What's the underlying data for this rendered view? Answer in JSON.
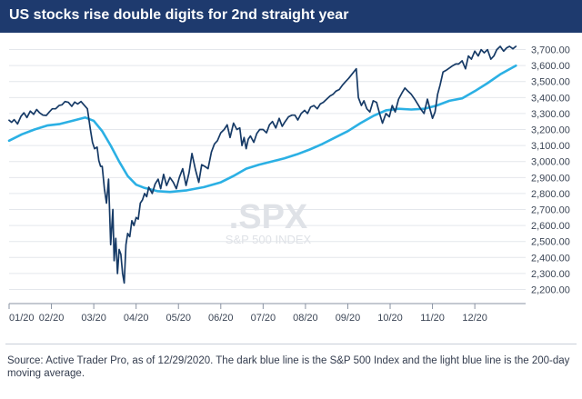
{
  "header": {
    "title": "US stocks rise double digits for 2nd straight year"
  },
  "watermark": {
    "symbol": ".SPX",
    "name": "S&P 500 INDEX"
  },
  "footer": {
    "source": "Source: Active Trader Pro, as of 12/29/2020. The dark blue line is the S&P 500 Index and the light blue line is the 200-day moving average."
  },
  "colors": {
    "title_bar": "#1e3a6e",
    "spx_line": "#163a66",
    "ma_line": "#2bb0e4",
    "grid": "#e4e7ec"
  },
  "chart_data": {
    "type": "line",
    "title": "US stocks rise double digits for 2nd straight year",
    "xlabel": "",
    "ylabel": "",
    "x_ticks": [
      "01/20",
      "02/20",
      "03/20",
      "04/20",
      "05/20",
      "06/20",
      "07/20",
      "08/20",
      "09/20",
      "10/20",
      "11/20",
      "12/20"
    ],
    "y_ticks": [
      "2,200.00",
      "2,300.00",
      "2,400.00",
      "2,500.00",
      "2,600.00",
      "2,700.00",
      "2,800.00",
      "2,900.00",
      "3,000.00",
      "3,100.00",
      "3,200.00",
      "3,300.00",
      "3,400.00",
      "3,500.00",
      "3,600.00",
      "3,700.00"
    ],
    "ylim": [
      2180,
      3760
    ],
    "xlim": [
      0,
      12.2
    ],
    "grid": "horizontal",
    "series": [
      {
        "x": [
          0.0,
          0.06,
          0.12,
          0.2,
          0.28,
          0.35,
          0.42,
          0.5,
          0.58,
          0.65,
          0.72,
          0.8,
          0.88,
          0.95,
          1.02,
          1.1,
          1.18,
          1.25,
          1.32,
          1.4,
          1.48,
          1.55,
          1.62,
          1.7,
          1.78,
          1.85,
          1.92,
          1.97,
          2.02,
          2.08,
          2.12,
          2.16,
          2.2,
          2.25,
          2.3,
          2.35,
          2.4,
          2.45,
          2.48,
          2.52,
          2.56,
          2.6,
          2.64,
          2.68,
          2.72,
          2.76,
          2.8,
          2.85,
          2.9,
          2.95,
          3.0,
          3.05,
          3.1,
          3.15,
          3.2,
          3.25,
          3.3,
          3.38,
          3.45,
          3.52,
          3.58,
          3.65,
          3.72,
          3.8,
          3.88,
          3.95,
          4.02,
          4.1,
          4.18,
          4.25,
          4.32,
          4.4,
          4.48,
          4.55,
          4.62,
          4.7,
          4.78,
          4.85,
          4.92,
          5.0,
          5.08,
          5.15,
          5.22,
          5.3,
          5.38,
          5.45,
          5.5,
          5.55,
          5.6,
          5.65,
          5.7,
          5.78,
          5.85,
          5.92,
          6.0,
          6.08,
          6.15,
          6.22,
          6.3,
          6.38,
          6.45,
          6.52,
          6.6,
          6.68,
          6.75,
          6.82,
          6.9,
          6.98,
          7.05,
          7.12,
          7.2,
          7.28,
          7.35,
          7.42,
          7.5,
          7.58,
          7.65,
          7.72,
          7.8,
          7.88,
          7.95,
          8.02,
          8.08,
          8.14,
          8.2,
          8.25,
          8.32,
          8.38,
          8.45,
          8.52,
          8.6,
          8.68,
          8.75,
          8.82,
          8.9,
          8.98,
          9.05,
          9.12,
          9.2,
          9.28,
          9.35,
          9.42,
          9.5,
          9.58,
          9.65,
          9.72,
          9.8,
          9.88,
          9.95,
          10.0,
          10.06,
          10.12,
          10.18,
          10.25,
          10.32,
          10.4,
          10.48,
          10.55,
          10.62,
          10.7,
          10.78,
          10.85,
          10.92,
          11.0,
          11.08,
          11.15,
          11.22,
          11.3,
          11.38,
          11.45,
          11.52,
          11.6,
          11.68,
          11.75,
          11.82,
          11.9,
          11.97
        ],
        "values": [
          3258,
          3245,
          3262,
          3235,
          3282,
          3305,
          3275,
          3315,
          3295,
          3325,
          3305,
          3290,
          3288,
          3310,
          3330,
          3330,
          3350,
          3355,
          3375,
          3370,
          3345,
          3372,
          3360,
          3375,
          3350,
          3330,
          3200,
          3120,
          3080,
          3090,
          3005,
          2970,
          2970,
          2830,
          2740,
          2890,
          2480,
          2700,
          2380,
          2520,
          2300,
          2450,
          2420,
          2300,
          2240,
          2480,
          2550,
          2530,
          2630,
          2600,
          2650,
          2640,
          2740,
          2760,
          2800,
          2780,
          2840,
          2800,
          2860,
          2890,
          2830,
          2920,
          2850,
          2900,
          2870,
          2830,
          2900,
          2955,
          2850,
          2930,
          3050,
          2950,
          2870,
          2980,
          2970,
          2955,
          3060,
          3110,
          3130,
          3180,
          3200,
          3230,
          3150,
          3240,
          3200,
          3210,
          3100,
          3150,
          3080,
          3140,
          3160,
          3120,
          3175,
          3200,
          3200,
          3180,
          3230,
          3250,
          3210,
          3270,
          3220,
          3250,
          3280,
          3290,
          3290,
          3260,
          3300,
          3320,
          3300,
          3340,
          3350,
          3330,
          3360,
          3370,
          3390,
          3410,
          3420,
          3440,
          3450,
          3480,
          3500,
          3520,
          3540,
          3560,
          3580,
          3400,
          3350,
          3380,
          3330,
          3310,
          3380,
          3370,
          3300,
          3240,
          3300,
          3280,
          3350,
          3310,
          3390,
          3430,
          3460,
          3440,
          3420,
          3390,
          3360,
          3330,
          3300,
          3390,
          3320,
          3270,
          3310,
          3420,
          3480,
          3560,
          3570,
          3585,
          3600,
          3610,
          3610,
          3630,
          3580,
          3660,
          3640,
          3690,
          3660,
          3700,
          3680,
          3700,
          3640,
          3660,
          3700,
          3720,
          3690,
          3710,
          3720,
          3705,
          3720
        ],
        "stroke_role": "spx_line"
      },
      {
        "x": [
          0.0,
          0.3,
          0.6,
          0.9,
          1.2,
          1.5,
          1.8,
          2.0,
          2.2,
          2.4,
          2.6,
          2.8,
          3.0,
          3.2,
          3.5,
          3.8,
          4.2,
          4.6,
          5.0,
          5.3,
          5.6,
          5.9,
          6.2,
          6.5,
          6.8,
          7.1,
          7.4,
          7.7,
          8.0,
          8.3,
          8.6,
          8.9,
          9.2,
          9.5,
          9.8,
          10.1,
          10.4,
          10.7,
          11.0,
          11.3,
          11.6,
          11.97
        ],
        "values": [
          3130,
          3170,
          3200,
          3225,
          3235,
          3255,
          3275,
          3255,
          3190,
          3100,
          3000,
          2910,
          2855,
          2835,
          2815,
          2810,
          2820,
          2840,
          2870,
          2910,
          2955,
          2980,
          3000,
          3020,
          3045,
          3075,
          3110,
          3150,
          3190,
          3240,
          3285,
          3320,
          3330,
          3325,
          3330,
          3350,
          3380,
          3395,
          3440,
          3490,
          3545,
          3600
        ],
        "stroke_role": "ma_line"
      }
    ]
  }
}
